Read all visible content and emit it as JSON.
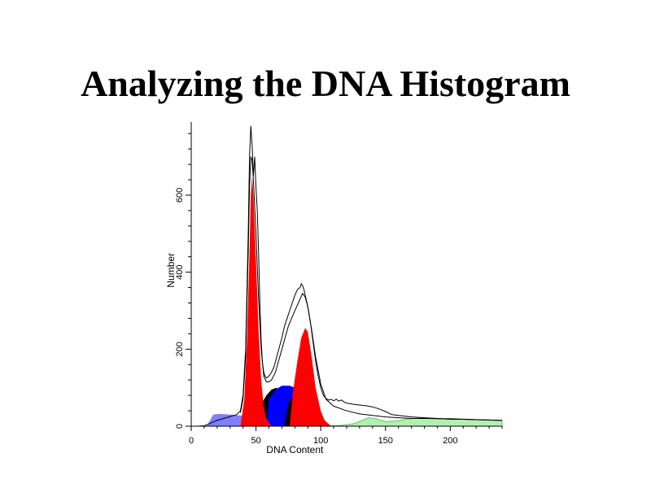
{
  "slide": {
    "title": "Analyzing the DNA Histogram"
  },
  "chart_data": {
    "type": "area",
    "title": "",
    "xlabel": "DNA Content",
    "ylabel": "Number",
    "xlim": [
      0,
      240
    ],
    "ylim": [
      0,
      790
    ],
    "xticks": [
      0,
      50,
      100,
      150,
      200
    ],
    "yticks": [
      0,
      200,
      400,
      600
    ],
    "grid": false,
    "colors": {
      "g1_peak": "#ff0000",
      "g2_peak": "#ff0000",
      "s_phase_early": "#000000",
      "s_phase_mid": "#0000ff",
      "debris": "#7f7fff",
      "aggregates": "#b2f0b2",
      "raw_data": "#000000",
      "model_fit": "#000000"
    },
    "components": [
      {
        "id": "debris",
        "points": [
          [
            12,
            0
          ],
          [
            17,
            30
          ],
          [
            22,
            32
          ],
          [
            30,
            30
          ],
          [
            38,
            28
          ],
          [
            44,
            20
          ],
          [
            48,
            0
          ]
        ]
      },
      {
        "id": "s_phase_early",
        "points": [
          [
            38,
            0
          ],
          [
            45,
            15
          ],
          [
            52,
            45
          ],
          [
            58,
            80
          ],
          [
            62,
            95
          ],
          [
            66,
            100
          ],
          [
            68,
            80
          ],
          [
            70,
            40
          ],
          [
            73,
            0
          ]
        ]
      },
      {
        "id": "s_phase_mid",
        "points": [
          [
            58,
            0
          ],
          [
            60,
            70
          ],
          [
            65,
            95
          ],
          [
            70,
            105
          ],
          [
            76,
            105
          ],
          [
            80,
            100
          ],
          [
            84,
            85
          ],
          [
            88,
            50
          ],
          [
            90,
            0
          ]
        ]
      },
      {
        "id": "s_phase_late",
        "points": [
          [
            72,
            0
          ],
          [
            75,
            60
          ],
          [
            80,
            85
          ],
          [
            85,
            90
          ],
          [
            90,
            75
          ],
          [
            95,
            45
          ],
          [
            100,
            20
          ],
          [
            104,
            0
          ]
        ]
      },
      {
        "id": "g1_peak",
        "points": [
          [
            38,
            0
          ],
          [
            41,
            70
          ],
          [
            43,
            220
          ],
          [
            45,
            450
          ],
          [
            46,
            600
          ],
          [
            47,
            650
          ],
          [
            48,
            600
          ],
          [
            50,
            430
          ],
          [
            52,
            250
          ],
          [
            54,
            120
          ],
          [
            56,
            50
          ],
          [
            58,
            20
          ],
          [
            62,
            0
          ]
        ]
      },
      {
        "id": "g2_peak",
        "points": [
          [
            76,
            0
          ],
          [
            79,
            100
          ],
          [
            82,
            170
          ],
          [
            85,
            230
          ],
          [
            88,
            255
          ],
          [
            90,
            245
          ],
          [
            93,
            180
          ],
          [
            96,
            100
          ],
          [
            100,
            40
          ],
          [
            103,
            15
          ],
          [
            108,
            0
          ]
        ]
      },
      {
        "id": "aggregates",
        "points": [
          [
            100,
            0
          ],
          [
            115,
            2
          ],
          [
            125,
            6
          ],
          [
            132,
            15
          ],
          [
            137,
            22
          ],
          [
            142,
            20
          ],
          [
            150,
            12
          ],
          [
            160,
            14
          ],
          [
            165,
            18
          ],
          [
            172,
            20
          ],
          [
            180,
            21
          ],
          [
            190,
            20
          ],
          [
            200,
            20
          ],
          [
            215,
            18
          ],
          [
            230,
            16
          ],
          [
            240,
            15
          ],
          [
            240,
            0
          ]
        ]
      }
    ],
    "raw_data": [
      [
        0,
        0
      ],
      [
        5,
        0
      ],
      [
        10,
        1
      ],
      [
        15,
        8
      ],
      [
        20,
        15
      ],
      [
        25,
        20
      ],
      [
        30,
        25
      ],
      [
        35,
        30
      ],
      [
        38,
        40
      ],
      [
        40,
        80
      ],
      [
        42,
        200
      ],
      [
        44,
        500
      ],
      [
        45,
        700
      ],
      [
        46,
        780
      ],
      [
        47,
        730
      ],
      [
        48,
        650
      ],
      [
        49,
        700
      ],
      [
        50,
        620
      ],
      [
        51,
        560
      ],
      [
        52,
        450
      ],
      [
        53,
        320
      ],
      [
        54,
        220
      ],
      [
        55,
        165
      ],
      [
        56,
        140
      ],
      [
        57,
        130
      ],
      [
        58,
        125
      ],
      [
        60,
        130
      ],
      [
        62,
        140
      ],
      [
        64,
        155
      ],
      [
        66,
        180
      ],
      [
        68,
        205
      ],
      [
        70,
        230
      ],
      [
        72,
        260
      ],
      [
        74,
        280
      ],
      [
        76,
        300
      ],
      [
        78,
        320
      ],
      [
        80,
        340
      ],
      [
        82,
        355
      ],
      [
        84,
        360
      ],
      [
        85,
        370
      ],
      [
        86,
        365
      ],
      [
        87,
        355
      ],
      [
        88,
        340
      ],
      [
        90,
        310
      ],
      [
        92,
        270
      ],
      [
        94,
        220
      ],
      [
        96,
        170
      ],
      [
        98,
        130
      ],
      [
        100,
        100
      ],
      [
        102,
        80
      ],
      [
        104,
        72
      ],
      [
        106,
        68
      ],
      [
        108,
        70
      ],
      [
        110,
        66
      ],
      [
        112,
        70
      ],
      [
        114,
        65
      ],
      [
        116,
        68
      ],
      [
        118,
        63
      ],
      [
        120,
        60
      ],
      [
        125,
        57
      ],
      [
        130,
        55
      ],
      [
        135,
        53
      ],
      [
        140,
        50
      ],
      [
        145,
        45
      ],
      [
        150,
        38
      ],
      [
        155,
        30
      ],
      [
        160,
        28
      ],
      [
        170,
        24
      ],
      [
        180,
        22
      ],
      [
        190,
        20
      ],
      [
        200,
        18
      ],
      [
        210,
        18
      ],
      [
        220,
        17
      ],
      [
        230,
        16
      ],
      [
        240,
        15
      ]
    ],
    "model_fit": [
      [
        38,
        35
      ],
      [
        40,
        70
      ],
      [
        42,
        180
      ],
      [
        44,
        450
      ],
      [
        45,
        620
      ],
      [
        46,
        700
      ],
      [
        47,
        690
      ],
      [
        48,
        640
      ],
      [
        50,
        500
      ],
      [
        52,
        330
      ],
      [
        54,
        200
      ],
      [
        56,
        130
      ],
      [
        58,
        115
      ],
      [
        60,
        115
      ],
      [
        62,
        120
      ],
      [
        65,
        140
      ],
      [
        70,
        200
      ],
      [
        75,
        260
      ],
      [
        80,
        300
      ],
      [
        84,
        330
      ],
      [
        86,
        345
      ],
      [
        88,
        335
      ],
      [
        90,
        310
      ],
      [
        93,
        250
      ],
      [
        96,
        180
      ],
      [
        100,
        110
      ],
      [
        104,
        70
      ],
      [
        110,
        52
      ],
      [
        120,
        40
      ],
      [
        130,
        32
      ],
      [
        140,
        28
      ],
      [
        150,
        24
      ],
      [
        160,
        22
      ],
      [
        170,
        20
      ],
      [
        180,
        20
      ],
      [
        200,
        19
      ],
      [
        220,
        17
      ],
      [
        240,
        15
      ]
    ]
  }
}
